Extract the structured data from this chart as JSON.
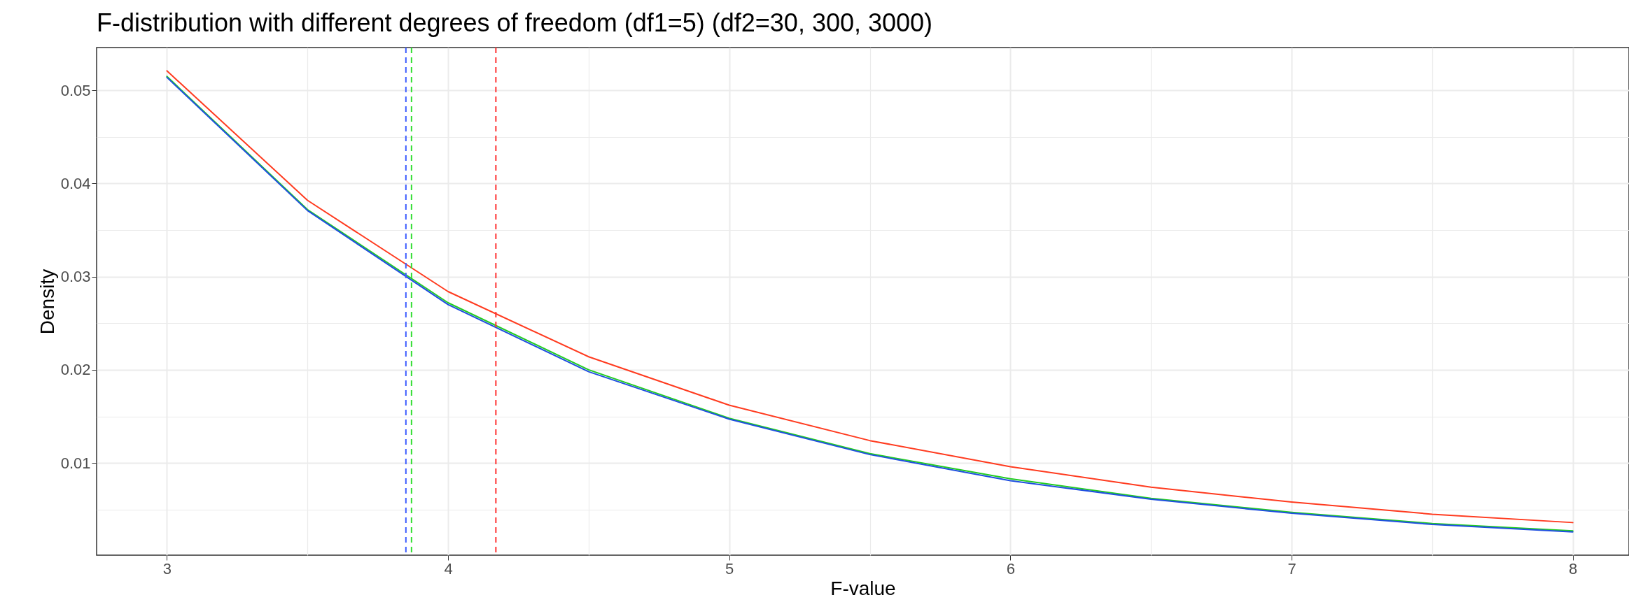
{
  "chart_data": {
    "type": "line",
    "title": "F-distribution with different degrees of freedom (df1=5) (df2=30, 300, 3000)",
    "xlabel": "F-value",
    "ylabel": "Density",
    "x": [
      3,
      3.5,
      4,
      4.5,
      5,
      5.5,
      6,
      6.5,
      7,
      7.5,
      8
    ],
    "series": [
      {
        "color": "#ff3b1f",
        "values": [
          0.0521,
          0.0382,
          0.0284,
          0.0214,
          0.0162,
          0.0124,
          0.0096,
          0.0074,
          0.0058,
          0.0045,
          0.0036
        ]
      },
      {
        "color": "#22cc22",
        "values": [
          0.0515,
          0.0372,
          0.0272,
          0.02,
          0.0148,
          0.011,
          0.0083,
          0.0062,
          0.0047,
          0.0035,
          0.0027
        ]
      },
      {
        "color": "#1f4fe0",
        "values": [
          0.0514,
          0.0371,
          0.027,
          0.0198,
          0.0147,
          0.0109,
          0.0081,
          0.0061,
          0.0046,
          0.0034,
          0.0026
        ]
      }
    ],
    "xlim": [
      2.75,
      8.2
    ],
    "ylim": [
      0.0001,
      0.0546
    ],
    "xticks": [
      3,
      {
        "value": 3.5,
        "label": null
      },
      4,
      {
        "value": 4.5,
        "label": null
      },
      5,
      {
        "value": 5.5,
        "label": null
      },
      6,
      {
        "value": 6.5,
        "label": null
      },
      7,
      {
        "value": 7.5,
        "label": null
      },
      8
    ],
    "yticks": [
      {
        "value": 0.005,
        "label": null
      },
      0.01,
      {
        "value": 0.015,
        "label": null
      },
      0.02,
      {
        "value": 0.025,
        "label": null
      },
      0.03,
      {
        "value": 0.035,
        "label": null
      },
      0.04,
      {
        "value": 0.045,
        "label": null
      },
      0.05
    ],
    "ref_lines": [
      {
        "axis": "x",
        "value": 3.85,
        "color": "#3d5cff",
        "line_style": "dashed"
      },
      {
        "axis": "x",
        "value": 3.87,
        "color": "#33dd33",
        "line_style": "dashed"
      },
      {
        "axis": "x",
        "value": 4.17,
        "color": "#ff3333",
        "line_style": "dashed"
      }
    ],
    "grid": true,
    "line_style": "solid",
    "marker": "none",
    "legend": false
  }
}
